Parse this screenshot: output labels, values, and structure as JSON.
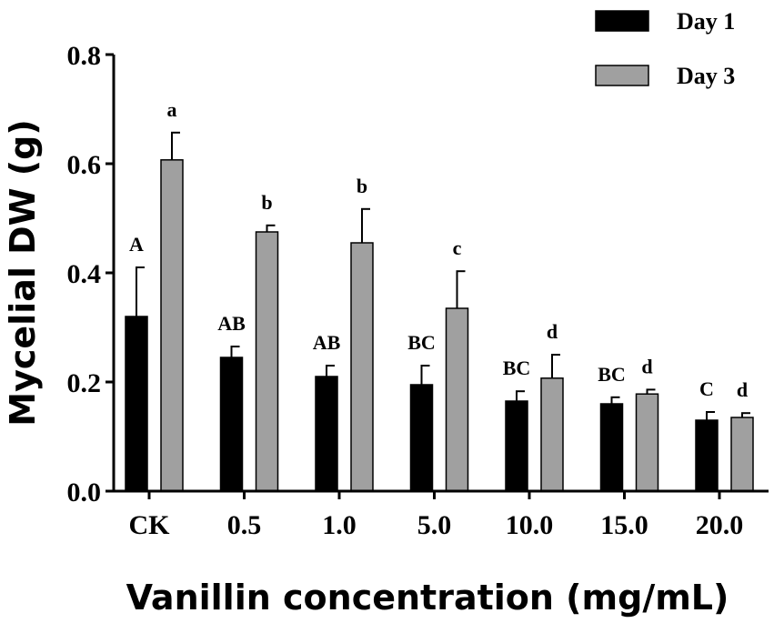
{
  "chart_data": {
    "type": "bar",
    "title": "",
    "xlabel": "Vanillin concentration (mg/mL)",
    "ylabel": "Mycelial DW (g)",
    "ylim": [
      0,
      0.8
    ],
    "yticks": [
      "0.0",
      "0.2",
      "0.4",
      "0.6",
      "0.8"
    ],
    "ytick_values": [
      0,
      0.2,
      0.4,
      0.6,
      0.8
    ],
    "categories": [
      "CK",
      "0.5",
      "1.0",
      "5.0",
      "10.0",
      "15.0",
      "20.0"
    ],
    "legend_position": "top-right",
    "series": [
      {
        "name": "Day 1",
        "color": "#000000",
        "values": [
          0.32,
          0.245,
          0.21,
          0.195,
          0.165,
          0.16,
          0.13
        ],
        "errors": [
          0.09,
          0.02,
          0.02,
          0.035,
          0.018,
          0.012,
          0.015
        ],
        "labels": [
          "A",
          "AB",
          "AB",
          "BC",
          "BC",
          "BC",
          "C"
        ]
      },
      {
        "name": "Day 3",
        "color": "#a0a0a0",
        "values": [
          0.607,
          0.475,
          0.455,
          0.335,
          0.207,
          0.178,
          0.135
        ],
        "errors": [
          0.05,
          0.012,
          0.062,
          0.068,
          0.043,
          0.008,
          0.008
        ],
        "labels": [
          "a",
          "b",
          "b",
          "c",
          "d",
          "d",
          "d"
        ]
      }
    ]
  }
}
